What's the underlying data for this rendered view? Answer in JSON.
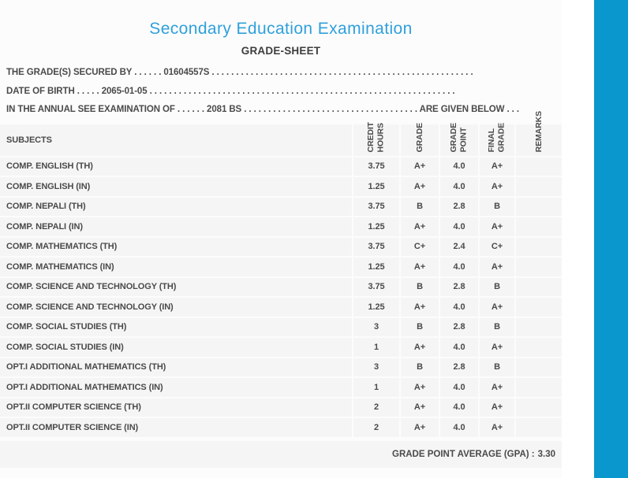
{
  "page": {
    "title": "Secondary Education Examination",
    "subtitle": "GRADE-SHEET"
  },
  "colors": {
    "title_blue": "#2fa0dc",
    "accent_bar_blue": "#0997cd",
    "row_background": "#f5f5f5",
    "text_gray": "#4a4a4a"
  },
  "info_lines": [
    {
      "label": "THE GRADE(S) SECURED BY",
      "pre_dots": 6,
      "value": "01604557S",
      "post_dots": 54,
      "suffix": "",
      "suffix_dots": 0
    },
    {
      "label": "DATE OF BIRTH",
      "pre_dots": 5,
      "value": "2065-01-05",
      "post_dots": 63,
      "suffix": "",
      "suffix_dots": 0
    },
    {
      "label": "IN THE ANNUAL SEE EXAMINATION OF",
      "pre_dots": 6,
      "value": "2081 BS",
      "post_dots": 36,
      "suffix": "ARE GIVEN BELOW",
      "suffix_dots": 3
    }
  ],
  "table": {
    "subjects_header": "SUBJECTS",
    "columns": [
      {
        "id": "credit-hours",
        "label_lines": [
          "CREDIT",
          "HOURS"
        ]
      },
      {
        "id": "grade",
        "label_lines": [
          "GRADE"
        ]
      },
      {
        "id": "grade-point",
        "label_lines": [
          "GRADE",
          "POINT"
        ]
      },
      {
        "id": "final-grade",
        "label_lines": [
          "FINAL",
          "GRADE"
        ]
      },
      {
        "id": "remarks",
        "label_lines": [
          "REMARKS"
        ]
      }
    ],
    "rows": [
      {
        "subject": "COMP. ENGLISH (TH)",
        "credit_hours": "3.75",
        "grade": "A+",
        "grade_point": "4.0",
        "final_grade": "A+",
        "remarks": ""
      },
      {
        "subject": "COMP. ENGLISH (IN)",
        "credit_hours": "1.25",
        "grade": "A+",
        "grade_point": "4.0",
        "final_grade": "A+",
        "remarks": ""
      },
      {
        "subject": "COMP. NEPALI (TH)",
        "credit_hours": "3.75",
        "grade": "B",
        "grade_point": "2.8",
        "final_grade": "B",
        "remarks": ""
      },
      {
        "subject": "COMP. NEPALI (IN)",
        "credit_hours": "1.25",
        "grade": "A+",
        "grade_point": "4.0",
        "final_grade": "A+",
        "remarks": ""
      },
      {
        "subject": "COMP. MATHEMATICS (TH)",
        "credit_hours": "3.75",
        "grade": "C+",
        "grade_point": "2.4",
        "final_grade": "C+",
        "remarks": ""
      },
      {
        "subject": "COMP. MATHEMATICS (IN)",
        "credit_hours": "1.25",
        "grade": "A+",
        "grade_point": "4.0",
        "final_grade": "A+",
        "remarks": ""
      },
      {
        "subject": "COMP. SCIENCE AND TECHNOLOGY (TH)",
        "credit_hours": "3.75",
        "grade": "B",
        "grade_point": "2.8",
        "final_grade": "B",
        "remarks": ""
      },
      {
        "subject": "COMP. SCIENCE AND TECHNOLOGY (IN)",
        "credit_hours": "1.25",
        "grade": "A+",
        "grade_point": "4.0",
        "final_grade": "A+",
        "remarks": ""
      },
      {
        "subject": "COMP. SOCIAL STUDIES (TH)",
        "credit_hours": "3",
        "grade": "B",
        "grade_point": "2.8",
        "final_grade": "B",
        "remarks": ""
      },
      {
        "subject": "COMP. SOCIAL STUDIES (IN)",
        "credit_hours": "1",
        "grade": "A+",
        "grade_point": "4.0",
        "final_grade": "A+",
        "remarks": ""
      },
      {
        "subject": "OPT.I ADDITIONAL MATHEMATICS (TH)",
        "credit_hours": "3",
        "grade": "B",
        "grade_point": "2.8",
        "final_grade": "B",
        "remarks": ""
      },
      {
        "subject": "OPT.I ADDITIONAL MATHEMATICS (IN)",
        "credit_hours": "1",
        "grade": "A+",
        "grade_point": "4.0",
        "final_grade": "A+",
        "remarks": ""
      },
      {
        "subject": "OPT.II COMPUTER SCIENCE (TH)",
        "credit_hours": "2",
        "grade": "A+",
        "grade_point": "4.0",
        "final_grade": "A+",
        "remarks": ""
      },
      {
        "subject": "OPT.II COMPUTER SCIENCE (IN)",
        "credit_hours": "2",
        "grade": "A+",
        "grade_point": "4.0",
        "final_grade": "A+",
        "remarks": ""
      }
    ],
    "footer": {
      "gpa_label": "GRADE POINT AVERAGE (GPA) :",
      "gpa_value": "3.30"
    }
  }
}
